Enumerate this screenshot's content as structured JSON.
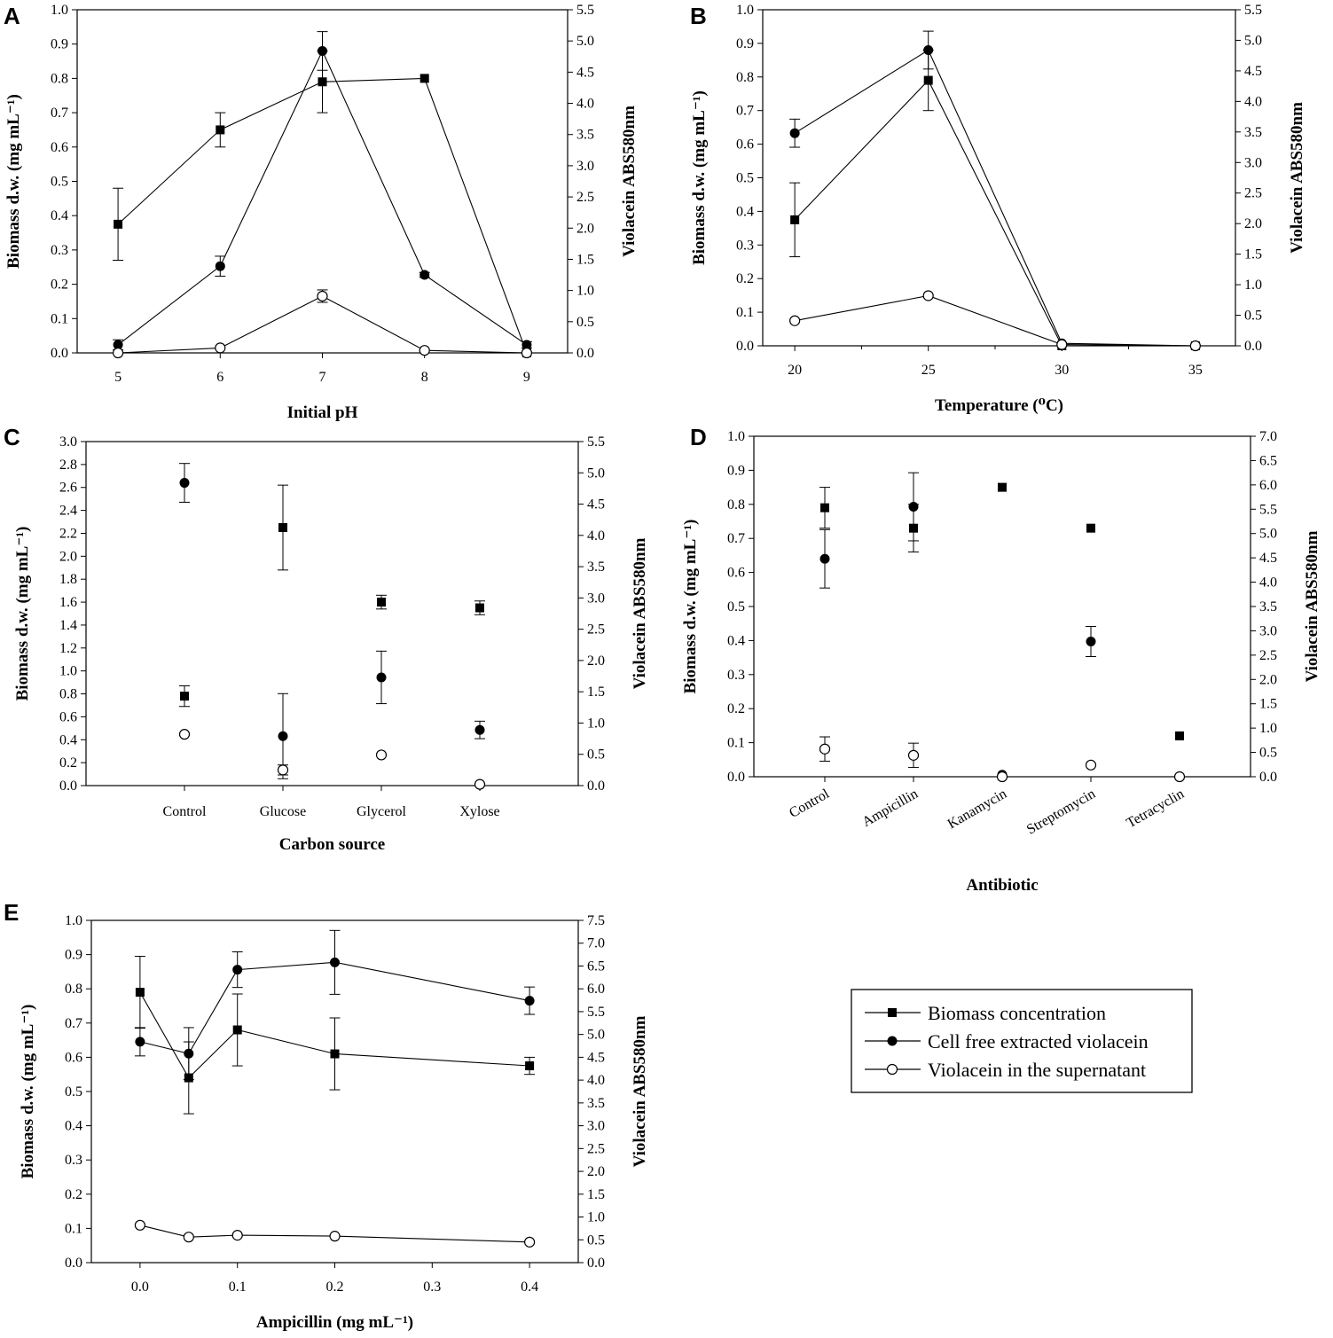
{
  "figure_labels": [
    "A",
    "B",
    "C",
    "D",
    "E"
  ],
  "legend": {
    "biomass": "Biomass concentration",
    "violacein_cell": "Cell free extracted violacein",
    "violacein_sup": "Violacein in the supernatant"
  },
  "chart_data": [
    {
      "id": "A",
      "type": "line",
      "xlabel": "Initial pH",
      "ylabel": "Biomass d.w. (mg mL⁻¹)",
      "ylabel_right": "Violacein ABS580nm",
      "x_numeric": true,
      "xlim": [
        4.6,
        9.4
      ],
      "xticks": [
        5,
        6,
        7,
        8,
        9
      ],
      "xtick_labels": [
        "5",
        "6",
        "7",
        "8",
        "9"
      ],
      "ylim": [
        0,
        1.0
      ],
      "ystep": 0.1,
      "y2lim": [
        0,
        5.5
      ],
      "y2step": 0.5,
      "connect": true,
      "series": [
        {
          "name": "Biomass concentration",
          "marker": "square",
          "axis": "left",
          "x": [
            5,
            6,
            7,
            8,
            9
          ],
          "values": [
            0.375,
            0.65,
            0.79,
            0.8,
            0.0
          ],
          "err": [
            0.105,
            0.05,
            0.09,
            0.0,
            0.0
          ]
        },
        {
          "name": "Cell free extracted violacein",
          "marker": "circle",
          "axis": "right",
          "x": [
            5,
            6,
            7,
            8,
            9
          ],
          "values": [
            0.13,
            1.39,
            4.84,
            1.25,
            0.13
          ],
          "err": [
            0.08,
            0.16,
            0.31,
            0.04,
            0.05
          ]
        },
        {
          "name": "Violacein in the supernatant",
          "marker": "open-circle",
          "axis": "right",
          "x": [
            5,
            6,
            7,
            8,
            9
          ],
          "values": [
            0.0,
            0.08,
            0.91,
            0.04,
            0.0
          ],
          "err": [
            0.0,
            0.0,
            0.1,
            0.0,
            0.0
          ]
        }
      ]
    },
    {
      "id": "B",
      "type": "line",
      "xlabel": "Temperature (⁰C)",
      "ylabel": "Biomass d.w. (mg mL⁻¹)",
      "ylabel_right": "Violacein ABS580nm",
      "x_numeric": true,
      "xlim": [
        18.8,
        36.5
      ],
      "xticks": [
        20,
        25,
        30,
        35
      ],
      "xtick_labels": [
        "20",
        "25",
        "30",
        "35"
      ],
      "xminor": [
        22.5,
        27.5,
        32.5
      ],
      "ylim": [
        0,
        1.0
      ],
      "ystep": 0.1,
      "y2lim": [
        0,
        5.5
      ],
      "y2step": 0.5,
      "connect": true,
      "series": [
        {
          "name": "Biomass concentration",
          "marker": "square",
          "axis": "left",
          "x": [
            20,
            25,
            30,
            35
          ],
          "values": [
            0.375,
            0.79,
            0.0,
            0.0
          ],
          "err": [
            0.11,
            0.09,
            0.0,
            0.0
          ]
        },
        {
          "name": "Cell free extracted violacein",
          "marker": "circle",
          "axis": "right",
          "x": [
            20,
            25,
            30,
            35
          ],
          "values": [
            3.48,
            4.84,
            0.04,
            0.0
          ],
          "err": [
            0.23,
            0.31,
            0.0,
            0.0
          ]
        },
        {
          "name": "Violacein in the supernatant",
          "marker": "open-circle",
          "axis": "right",
          "x": [
            20,
            25,
            30,
            35
          ],
          "values": [
            0.41,
            0.82,
            0.02,
            0.0
          ],
          "err": [
            0.0,
            0.0,
            0.0,
            0.0
          ]
        }
      ]
    },
    {
      "id": "C",
      "type": "scatter",
      "xlabel": "Carbon source",
      "ylabel": "Biomass d.w. (mg mL⁻¹)",
      "ylabel_right": "Violacein ABS580nm",
      "x_numeric": false,
      "xlim": [
        0,
        5
      ],
      "xticks": [
        1,
        2,
        3,
        4
      ],
      "xtick_labels": [
        "Control",
        "Glucose",
        "Glycerol",
        "Xylose"
      ],
      "ylim": [
        0,
        3.0
      ],
      "ystep": 0.2,
      "y2lim": [
        0,
        5.5
      ],
      "y2step": 0.5,
      "connect": false,
      "series": [
        {
          "name": "Biomass concentration",
          "marker": "square",
          "axis": "left",
          "x": [
            1,
            2,
            3,
            4
          ],
          "values": [
            0.78,
            2.25,
            1.6,
            1.55
          ],
          "err": [
            0.09,
            0.37,
            0.06,
            0.06
          ]
        },
        {
          "name": "Cell free extracted violacein",
          "marker": "circle",
          "axis": "right",
          "x": [
            1,
            2,
            3,
            4
          ],
          "values": [
            4.84,
            0.79,
            1.73,
            0.89
          ],
          "err": [
            0.31,
            0.68,
            0.42,
            0.14
          ]
        },
        {
          "name": "Violacein in the supernatant",
          "marker": "open-circle",
          "axis": "right",
          "x": [
            1,
            2,
            3,
            4
          ],
          "values": [
            0.82,
            0.25,
            0.49,
            0.02
          ],
          "err": [
            0.0,
            0.08,
            0.0,
            0.0
          ]
        }
      ]
    },
    {
      "id": "D",
      "type": "scatter",
      "xlabel": "Antibiotic",
      "ylabel": "Biomass d.w. (mg mL⁻¹)",
      "ylabel_right": "Violacein ABS580nm",
      "x_numeric": false,
      "rotate_xticks": true,
      "xlim": [
        0.2,
        5.8
      ],
      "xticks": [
        1,
        2,
        3,
        4,
        5
      ],
      "xtick_labels": [
        "Control",
        "Ampicillin",
        "Kanamycin",
        "Streptomycin",
        "Tetracyclin"
      ],
      "ylim": [
        0,
        1.0
      ],
      "ystep": 0.1,
      "y2lim": [
        0,
        7.0
      ],
      "y2step": 0.5,
      "connect": false,
      "series": [
        {
          "name": "Biomass concentration",
          "marker": "square",
          "axis": "left",
          "x": [
            1,
            2,
            3,
            4,
            5
          ],
          "values": [
            0.79,
            0.73,
            0.85,
            0.73,
            0.12
          ],
          "err": [
            0.06,
            0.07,
            0.0,
            0.0,
            0.0
          ]
        },
        {
          "name": "Cell free extracted violacein",
          "marker": "circle",
          "axis": "right",
          "x": [
            1,
            2,
            3,
            4,
            5
          ],
          "values": [
            4.48,
            5.55,
            0.04,
            2.78,
            0.0
          ],
          "err": [
            0.6,
            0.7,
            0.0,
            0.31,
            0.0
          ]
        },
        {
          "name": "Violacein in the supernatant",
          "marker": "open-circle",
          "axis": "right",
          "x": [
            1,
            2,
            3,
            4,
            5
          ],
          "values": [
            0.57,
            0.44,
            0.0,
            0.24,
            0.0
          ],
          "err": [
            0.25,
            0.25,
            0.0,
            0.0,
            0.0
          ]
        }
      ]
    },
    {
      "id": "E",
      "type": "line",
      "xlabel": "Ampicillin (mg mL⁻¹)",
      "ylabel": "Biomass d.w. (mg mL⁻¹)",
      "ylabel_right": "Violacein ABS580nm",
      "x_numeric": true,
      "xlim": [
        -0.05,
        0.45
      ],
      "xticks": [
        0.0,
        0.1,
        0.2,
        0.3,
        0.4
      ],
      "xtick_labels": [
        "0.0",
        "0.1",
        "0.2",
        "0.3",
        "0.4"
      ],
      "ylim": [
        0,
        1.0
      ],
      "ystep": 0.1,
      "y2lim": [
        0,
        7.5
      ],
      "y2step": 0.5,
      "connect": true,
      "series": [
        {
          "name": "Biomass concentration",
          "marker": "square",
          "axis": "left",
          "x": [
            0.0,
            0.05,
            0.1,
            0.2,
            0.4
          ],
          "values": [
            0.79,
            0.54,
            0.68,
            0.61,
            0.575
          ],
          "err": [
            0.105,
            0.105,
            0.105,
            0.105,
            0.025
          ]
        },
        {
          "name": "Cell free extracted violacein",
          "marker": "circle",
          "axis": "right",
          "x": [
            0.0,
            0.05,
            0.1,
            0.2,
            0.4
          ],
          "values": [
            4.84,
            4.58,
            6.42,
            6.58,
            5.74
          ],
          "err": [
            0.31,
            0.57,
            0.39,
            0.7,
            0.3
          ]
        },
        {
          "name": "Violacein in the supernatant",
          "marker": "open-circle",
          "axis": "right",
          "x": [
            0.0,
            0.05,
            0.1,
            0.2,
            0.4
          ],
          "values": [
            0.82,
            0.56,
            0.6,
            0.58,
            0.45
          ],
          "err": [
            0.0,
            0.0,
            0.0,
            0.0,
            0.0
          ]
        }
      ]
    }
  ]
}
